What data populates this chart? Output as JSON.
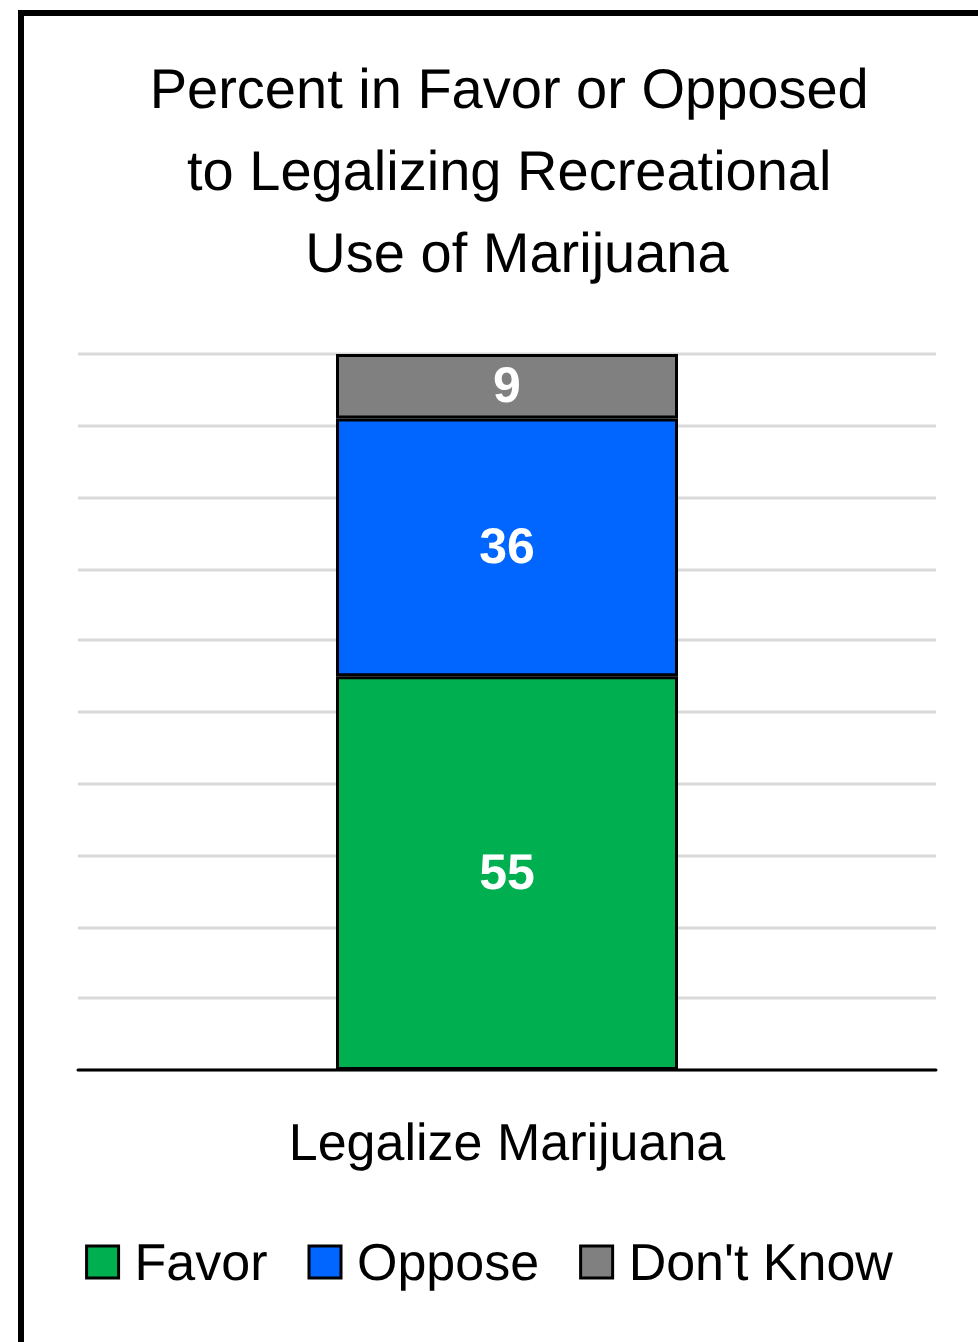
{
  "chart_data": {
    "type": "bar",
    "title": "Percent in Favor or Opposed to Legalizing Recreational Use of Marijuana",
    "categories": [
      "Legalize Marijuana"
    ],
    "series": [
      {
        "name": "Favor",
        "color": "#00b050",
        "values": [
          55
        ]
      },
      {
        "name": "Oppose",
        "color": "#0066ff",
        "values": [
          36
        ]
      },
      {
        "name": "Don't Know",
        "color": "#808080",
        "values": [
          9
        ]
      }
    ],
    "stacked": true,
    "data_labels": true,
    "ylim": [
      0,
      100
    ],
    "yticks": [
      {
        "value": 0,
        "label": null
      },
      {
        "value": 10,
        "label": null
      },
      {
        "value": 20,
        "label": null
      },
      {
        "value": 30,
        "label": null
      },
      {
        "value": 40,
        "label": null
      },
      {
        "value": 50,
        "label": null
      },
      {
        "value": 60,
        "label": null
      },
      {
        "value": 70,
        "label": null
      },
      {
        "value": 80,
        "label": null
      }
    ],
    "grid": "y",
    "legend": "bottom",
    "tick_labels": "x"
  }
}
